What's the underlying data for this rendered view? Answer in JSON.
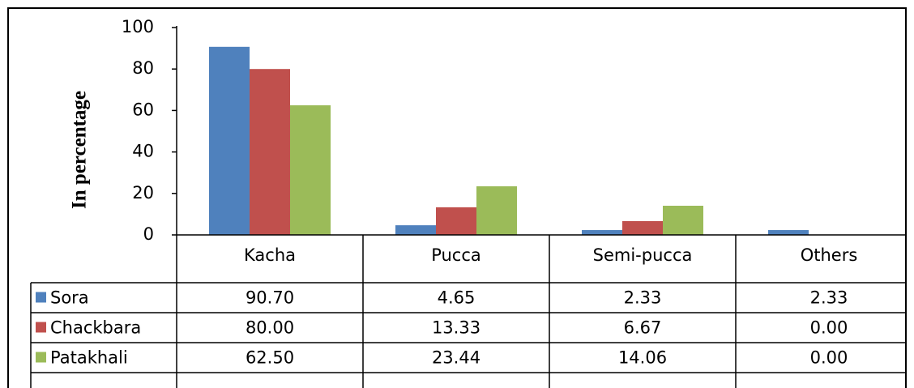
{
  "chart_data": {
    "type": "bar",
    "y_label": "In percentage",
    "categories": [
      "Kacha",
      "Pucca",
      "Semi-pucca",
      "Others"
    ],
    "series": [
      {
        "name": "Sora",
        "color": "#4f81bd",
        "values": [
          90.7,
          4.65,
          2.33,
          2.33
        ],
        "value_labels": [
          "90.70",
          "4.65",
          "2.33",
          "2.33"
        ]
      },
      {
        "name": "Chackbara",
        "color": "#c0504d",
        "values": [
          80,
          13.33,
          6.67,
          0
        ],
        "value_labels": [
          "80.00",
          "13.33",
          "6.67",
          "0.00"
        ]
      },
      {
        "name": "Patakhali",
        "color": "#9bbb59",
        "values": [
          62.5,
          23.44,
          14.06,
          0
        ],
        "value_labels": [
          "62.50",
          "23.44",
          "14.06",
          "0.00"
        ]
      }
    ],
    "ylim": [
      0,
      100
    ],
    "yticks": [
      0,
      20,
      40,
      60,
      80,
      100
    ],
    "grid": false,
    "data_table": true
  }
}
